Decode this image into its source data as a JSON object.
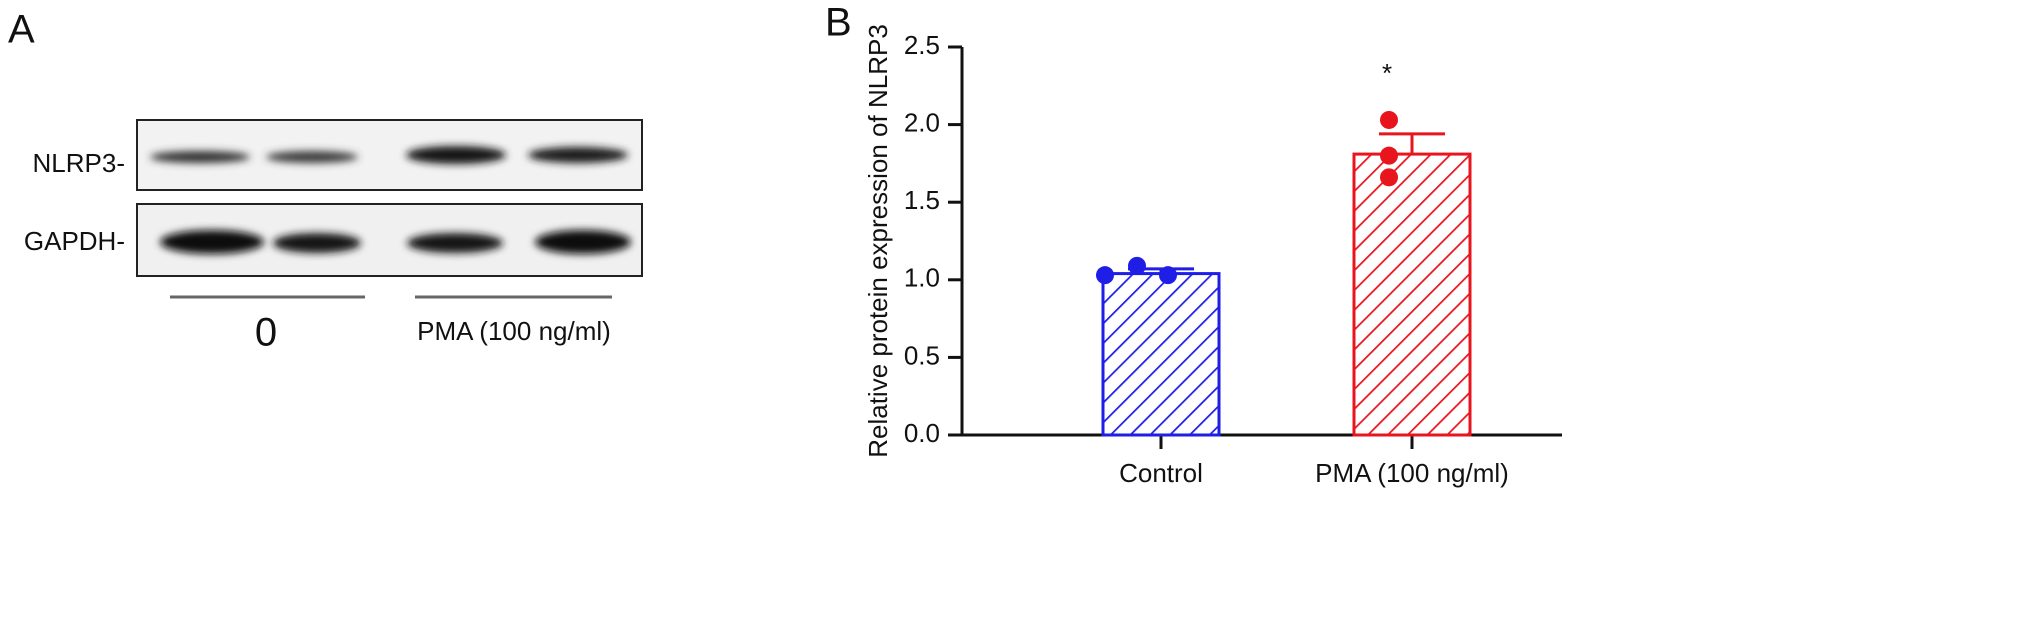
{
  "panel_a": {
    "label": "A",
    "rows": [
      "NLRP3-",
      "GAPDH-"
    ],
    "groups": [
      "0",
      "PMA (100 ng/ml)"
    ]
  },
  "chart_data": {
    "type": "bar",
    "panel_label": "B",
    "y_label": "Relative protein expression of NLRP3",
    "categories": [
      "Control",
      "PMA (100 ng/ml)"
    ],
    "values": [
      1.04,
      1.81
    ],
    "errors": [
      0.03,
      0.13
    ],
    "points": [
      [
        1.03,
        1.09,
        1.03
      ],
      [
        2.03,
        1.8,
        1.66
      ]
    ],
    "colors": [
      "#1e1ee6",
      "#e8141e"
    ],
    "significance": [
      null,
      "*"
    ],
    "hatch": true,
    "ylim": [
      0,
      2.5
    ],
    "yticks": [
      {
        "value": 0,
        "label": "0.0"
      },
      0.5,
      {
        "value": 1,
        "label": "1.0"
      },
      1.5,
      {
        "value": 2,
        "label": "2.0"
      },
      2.5
    ]
  }
}
